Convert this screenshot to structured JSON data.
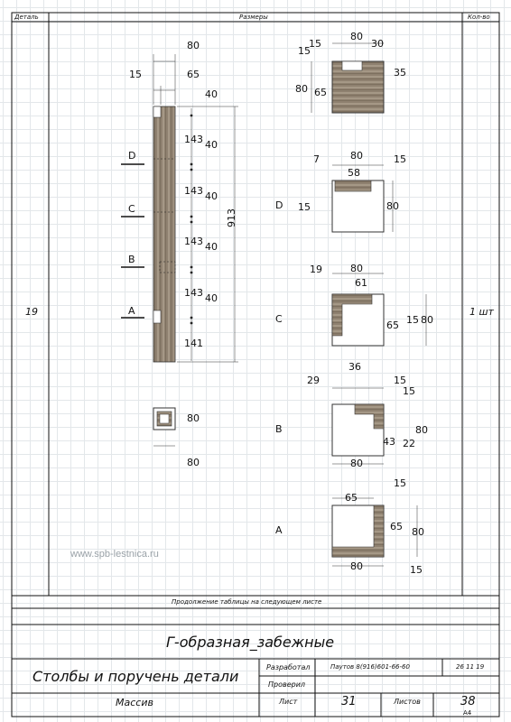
{
  "header": {
    "col_detail": "Деталь",
    "col_sizes": "Размеры",
    "col_qty": "Кол-во"
  },
  "row": {
    "detail_number": "19",
    "quantity": "1 шт"
  },
  "post_side": {
    "top_dims": [
      "80",
      "15",
      "65"
    ],
    "section_dims": [
      "40",
      "143",
      "40",
      "143",
      "40",
      "143",
      "40",
      "143",
      "40",
      "141"
    ],
    "total_height": "913",
    "markers": [
      "D",
      "C",
      "B",
      "A"
    ]
  },
  "post_top_view": {
    "dims": [
      "80",
      "80"
    ]
  },
  "sections": {
    "top": {
      "dims": [
        "15",
        "80",
        "30",
        "15",
        "35",
        "80",
        "65"
      ]
    },
    "D": {
      "label": "D",
      "dims": [
        "7",
        "80",
        "15",
        "58",
        "15",
        "80"
      ]
    },
    "C": {
      "label": "C",
      "dims": [
        "19",
        "80",
        "61",
        "65",
        "15",
        "80"
      ]
    },
    "B": {
      "label": "B",
      "dims": [
        "29",
        "36",
        "15",
        "15",
        "80",
        "43",
        "22",
        "80"
      ]
    },
    "A": {
      "label": "A",
      "dims": [
        "65",
        "15",
        "65",
        "80",
        "80",
        "15"
      ]
    }
  },
  "watermark": "www.spb-lestnica.ru",
  "continuation_note": "Продолжение таблицы на следующем листе",
  "title_block": {
    "project_title": "Г-образная_забежные",
    "drawing_title": "Столбы и поручень детали",
    "developed_label": "Разработал",
    "developer": "Паутов 8(916)601-66-60",
    "date": "26 11 19",
    "checked_label": "Проверил",
    "material": "Массив",
    "sheet_label": "Лист",
    "sheet_number": "31",
    "sheets_label": "Листов",
    "sheets_total": "38",
    "format": "А4"
  }
}
